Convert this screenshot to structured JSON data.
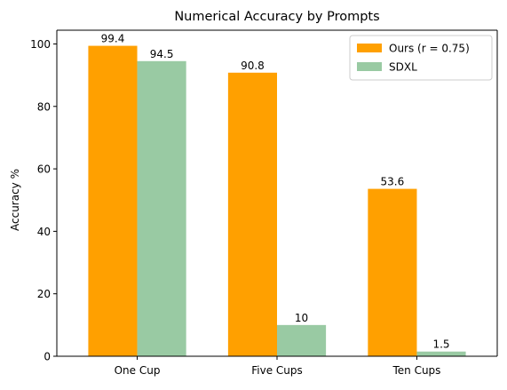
{
  "colors": {
    "ours": "#FFA000",
    "sdxl": "#99CAA3",
    "axis": "#000000",
    "background": "#ffffff"
  },
  "chart_data": {
    "type": "bar",
    "title": "Numerical Accuracy by Prompts",
    "xlabel": "",
    "ylabel": "Accuracy %",
    "categories": [
      "One Cup",
      "Five Cups",
      "Ten Cups"
    ],
    "series": [
      {
        "name": "Ours (r = 0.75)",
        "values": [
          99.4,
          90.8,
          53.6
        ],
        "labels": [
          "99.4",
          "90.8",
          "53.6"
        ],
        "color": "#FFA000"
      },
      {
        "name": "SDXL",
        "values": [
          94.5,
          10,
          1.5
        ],
        "labels": [
          "94.5",
          "10",
          "1.5"
        ],
        "color": "#99CAA3"
      }
    ],
    "ylim": [
      0,
      104.4
    ],
    "yticks": [
      0,
      20,
      40,
      60,
      80,
      100
    ],
    "ytick_labels": [
      "0",
      "20",
      "40",
      "60",
      "80",
      "100"
    ],
    "grid": false,
    "legend_position": "top-right"
  }
}
